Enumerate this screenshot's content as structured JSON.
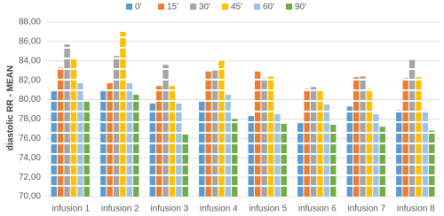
{
  "chart_data": {
    "type": "bar",
    "y_label": "diastolic RR - MEAN",
    "categories": [
      "infusion 1",
      "infusion 2",
      "infusion 3",
      "infusion 4",
      "infusion 5",
      "infusion 6",
      "infusion 7",
      "infusion 8"
    ],
    "series": [
      {
        "name": "0'",
        "color": "#5b9bd5",
        "values": [
          80.9,
          80.9,
          79.6,
          79.9,
          78.3,
          77.7,
          79.3,
          78.9
        ]
      },
      {
        "name": "15'",
        "color": "#ed7d31",
        "values": [
          83.3,
          81.7,
          81.4,
          82.9,
          82.9,
          81.1,
          82.3,
          82.2
        ]
      },
      {
        "name": "30'",
        "color": "#a5a5a5",
        "values": [
          85.7,
          84.5,
          83.6,
          83.0,
          82.2,
          81.3,
          82.4,
          84.1
        ]
      },
      {
        "name": "45'",
        "color": "#ffc000",
        "values": [
          84.3,
          87.0,
          81.4,
          84.0,
          82.4,
          80.9,
          81.1,
          82.3
        ]
      },
      {
        "name": "60'",
        "color": "#9dc3e6",
        "values": [
          81.7,
          81.7,
          79.6,
          80.5,
          78.5,
          79.5,
          78.5,
          78.9
        ]
      },
      {
        "name": "90'",
        "color": "#70ad47",
        "values": [
          79.9,
          80.5,
          76.4,
          78.0,
          77.5,
          77.4,
          77.2,
          76.8
        ]
      }
    ],
    "ylim": [
      70,
      88
    ],
    "yticks": [
      {
        "value": 70,
        "label": "70,00"
      },
      {
        "value": 72,
        "label": "72,00"
      },
      {
        "value": 74,
        "label": "74,00"
      },
      {
        "value": 76,
        "label": "76,00"
      },
      {
        "value": 78,
        "label": "78,00"
      },
      {
        "value": 80,
        "label": "80,00"
      },
      {
        "value": 82,
        "label": "82,00"
      },
      {
        "value": 84,
        "label": "84,00"
      },
      {
        "value": 86,
        "label": "86,00"
      },
      {
        "value": 88,
        "label": "88,00"
      }
    ],
    "grid": true
  }
}
